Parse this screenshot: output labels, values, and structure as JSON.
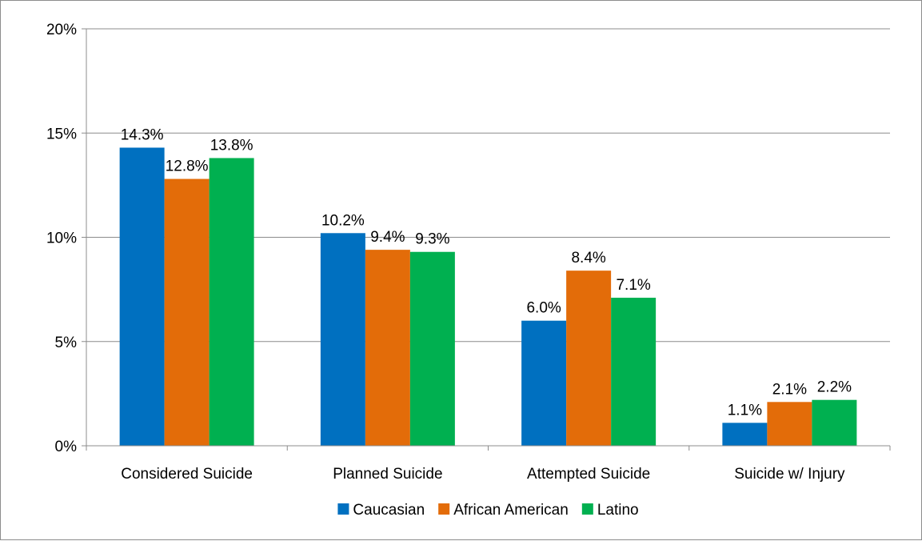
{
  "chart_data": {
    "type": "bar",
    "categories": [
      "Considered Suicide",
      "Planned Suicide",
      "Attempted Suicide",
      "Suicide w/ Injury"
    ],
    "series": [
      {
        "name": "Caucasian",
        "color": "#0070C0",
        "values": [
          14.3,
          10.2,
          6.0,
          1.1
        ],
        "labels": [
          "14.3%",
          "10.2%",
          "6.0%",
          "1.1%"
        ]
      },
      {
        "name": "African American",
        "color": "#E36C09",
        "values": [
          12.8,
          9.4,
          8.4,
          2.1
        ],
        "labels": [
          "12.8%",
          "9.4%",
          "8.4%",
          "2.1%"
        ]
      },
      {
        "name": "Latino",
        "color": "#00B050",
        "values": [
          13.8,
          9.3,
          7.1,
          2.2
        ],
        "labels": [
          "13.8%",
          "9.3%",
          "7.1%",
          "2.2%"
        ]
      }
    ],
    "ylim": [
      0,
      20
    ],
    "yticks": [
      0,
      5,
      10,
      15,
      20
    ],
    "ytick_labels": [
      "0%",
      "5%",
      "10%",
      "15%",
      "20%"
    ],
    "grid": true,
    "legend_position": "bottom"
  }
}
